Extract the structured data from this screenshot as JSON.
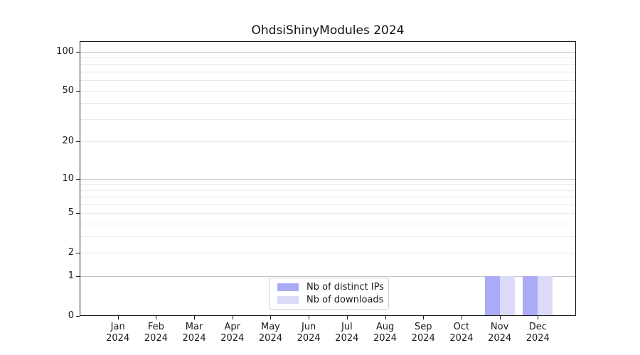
{
  "chart_data": {
    "type": "bar",
    "title": "OhdsiShinyModules 2024",
    "xlabel": "",
    "ylabel": "",
    "categories": [
      {
        "month": "Jan",
        "year": "2024"
      },
      {
        "month": "Feb",
        "year": "2024"
      },
      {
        "month": "Mar",
        "year": "2024"
      },
      {
        "month": "Apr",
        "year": "2024"
      },
      {
        "month": "May",
        "year": "2024"
      },
      {
        "month": "Jun",
        "year": "2024"
      },
      {
        "month": "Jul",
        "year": "2024"
      },
      {
        "month": "Aug",
        "year": "2024"
      },
      {
        "month": "Sep",
        "year": "2024"
      },
      {
        "month": "Oct",
        "year": "2024"
      },
      {
        "month": "Nov",
        "year": "2024"
      },
      {
        "month": "Dec",
        "year": "2024"
      }
    ],
    "series": [
      {
        "name": "Nb of distinct IPs",
        "color": "#aaaaf6",
        "values": [
          0,
          0,
          0,
          0,
          0,
          0,
          0,
          0,
          0,
          0,
          1,
          1
        ]
      },
      {
        "name": "Nb of downloads",
        "color": "#dbdbf9",
        "values": [
          0,
          0,
          0,
          0,
          0,
          0,
          0,
          0,
          0,
          0,
          1,
          1
        ]
      }
    ],
    "yscale": "log1p",
    "ylim": [
      0,
      120
    ],
    "yticks": [
      0,
      1,
      2,
      5,
      10,
      20,
      50,
      100
    ],
    "gridlines_major": [
      1,
      10,
      100
    ],
    "gridlines_minor": [
      2,
      3,
      4,
      5,
      6,
      7,
      8,
      9,
      20,
      30,
      40,
      50,
      60,
      70,
      80,
      90
    ],
    "grid": true,
    "legend_position": "bottom-center-inside"
  },
  "colors": {
    "background": "#ffffff",
    "spine": "#1a1a1a",
    "grid_major": "#c2c2c2",
    "grid_minor": "#e9e9e9",
    "legend_border": "#cccccc"
  }
}
